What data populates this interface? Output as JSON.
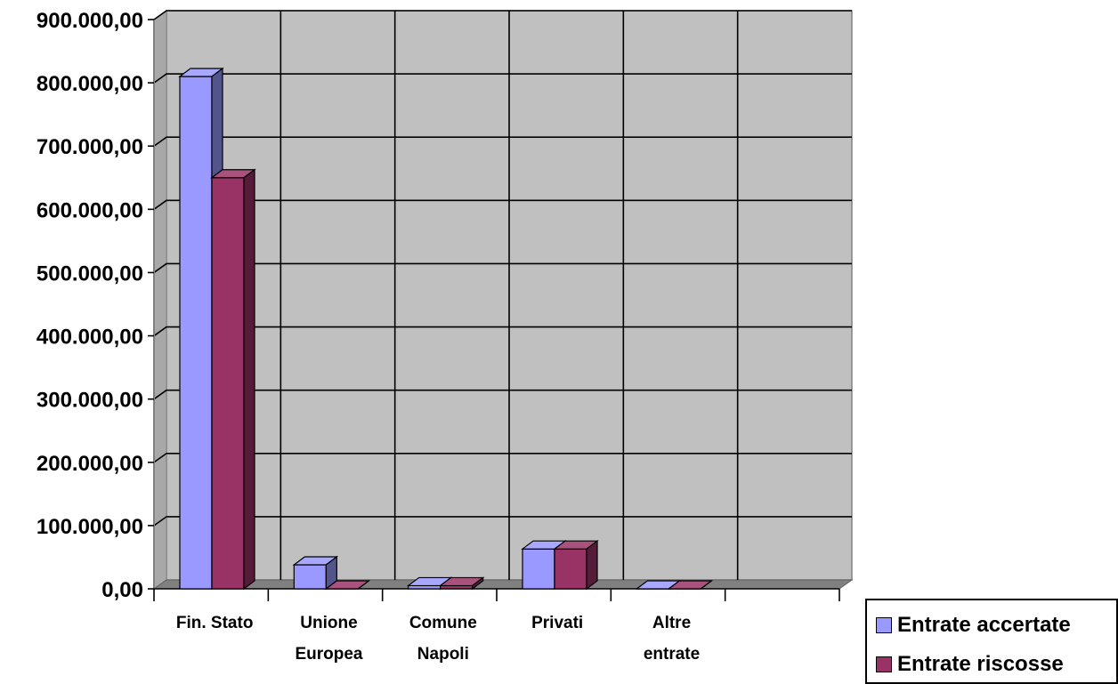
{
  "chart_data": {
    "type": "bar",
    "title": "",
    "xlabel": "",
    "ylabel": "",
    "categories": [
      [
        "Fin. Stato"
      ],
      [
        "Unione",
        "Europea"
      ],
      [
        "Comune",
        "Napoli"
      ],
      [
        "Privati"
      ],
      [
        "Altre",
        "entrate"
      ],
      [
        ""
      ]
    ],
    "series": [
      {
        "name": "Entrate accertate",
        "color": "#9999FF",
        "values": [
          810000,
          38000,
          5000,
          63000,
          0,
          0
        ]
      },
      {
        "name": "Entrate riscosse",
        "color": "#993366",
        "values": [
          650000,
          0,
          5000,
          63000,
          0,
          0
        ]
      }
    ],
    "ylim": [
      0,
      900000
    ],
    "yticks": [
      {
        "value": 0,
        "label": "0,00"
      },
      {
        "value": 100000,
        "label": "100.000,00"
      },
      {
        "value": 200000,
        "label": "200.000,00"
      },
      {
        "value": 300000,
        "label": "300.000,00"
      },
      {
        "value": 400000,
        "label": "400.000,00"
      },
      {
        "value": 500000,
        "label": "500.000,00"
      },
      {
        "value": 600000,
        "label": "600.000,00"
      },
      {
        "value": 700000,
        "label": "700.000,00"
      },
      {
        "value": 800000,
        "label": "800.000,00"
      },
      {
        "value": 900000,
        "label": "900.000,00"
      }
    ],
    "grid": true,
    "legend_position": "bottom-right",
    "plot_background": "#C0C0C0"
  }
}
